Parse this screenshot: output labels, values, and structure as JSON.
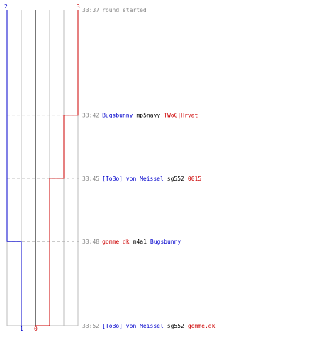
{
  "chart_data": {
    "type": "line",
    "colors": {
      "blue": "#0000cc",
      "red": "#cc0000",
      "black": "#000000",
      "time": "#888888",
      "grid": "#bbbbbb",
      "center": "#777777",
      "dash": "#aaaaaa"
    },
    "top_labels": {
      "left": "2",
      "right": "3"
    },
    "bottom_labels": {
      "left": "1",
      "right": "0"
    },
    "x_range": [
      -2,
      3
    ],
    "score_ticks": [
      -2,
      -1,
      0,
      1,
      2,
      3
    ],
    "series": [
      {
        "color_key": "blue",
        "points": [
          {
            "time": "33:37",
            "value": -2
          },
          {
            "time": "33:48",
            "value": -2
          },
          {
            "time": "33:48",
            "value": -1
          },
          {
            "time": "33:52",
            "value": -1
          }
        ]
      },
      {
        "color_key": "red",
        "points": [
          {
            "time": "33:37",
            "value": 3
          },
          {
            "time": "33:42",
            "value": 3
          },
          {
            "time": "33:42",
            "value": 2
          },
          {
            "time": "33:45",
            "value": 2
          },
          {
            "time": "33:45",
            "value": 1
          },
          {
            "time": "33:52",
            "value": 1
          },
          {
            "time": "33:52",
            "value": 0
          }
        ]
      }
    ],
    "events": [
      {
        "time": "33:37",
        "dashed": false,
        "parts": [
          {
            "text": "round started",
            "color_key": "time"
          }
        ]
      },
      {
        "time": "33:42",
        "dashed": true,
        "parts": [
          {
            "text": "Bugsbunny",
            "color_key": "blue"
          },
          {
            "text": "mp5navy",
            "color_key": "black"
          },
          {
            "text": "TWoG|Hrvat",
            "color_key": "red"
          }
        ]
      },
      {
        "time": "33:45",
        "dashed": true,
        "parts": [
          {
            "text": "[ToBo] von Meissel",
            "color_key": "blue"
          },
          {
            "text": "sg552",
            "color_key": "black"
          },
          {
            "text": "0015",
            "color_key": "red"
          }
        ]
      },
      {
        "time": "33:48",
        "dashed": true,
        "parts": [
          {
            "text": "gomme.dk",
            "color_key": "red"
          },
          {
            "text": "m4a1",
            "color_key": "black"
          },
          {
            "text": "Bugsbunny",
            "color_key": "blue"
          }
        ]
      },
      {
        "time": "33:52",
        "dashed": false,
        "parts": [
          {
            "text": "[ToBo] von Meissel",
            "color_key": "blue"
          },
          {
            "text": "sg552",
            "color_key": "black"
          },
          {
            "text": "gomme.dk",
            "color_key": "red"
          }
        ]
      }
    ]
  }
}
